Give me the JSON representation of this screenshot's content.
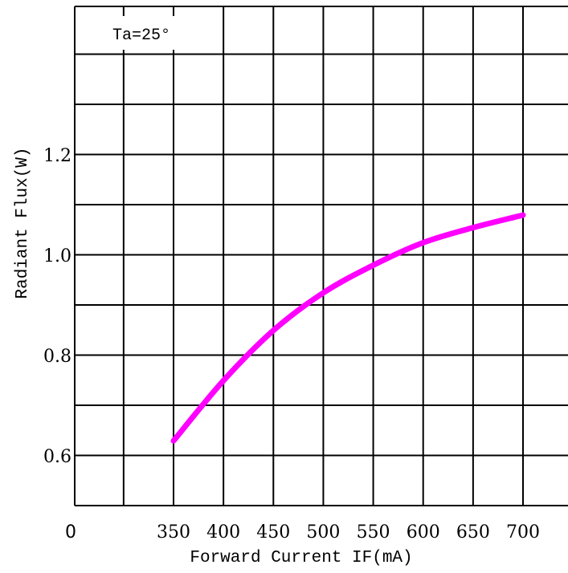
{
  "chart_data": {
    "type": "line",
    "annotation": "Ta=25°",
    "origin_label": "0",
    "xlabel": "Forward Current IF(mA)",
    "ylabel": "Radiant Flux(W)",
    "x_ticks": [
      "350",
      "400",
      "450",
      "500",
      "550",
      "600",
      "650",
      "700"
    ],
    "y_ticks": [
      "0.6",
      "0.8",
      "1.0",
      "1.2"
    ],
    "xlim": [
      250,
      700
    ],
    "ylim": [
      0.5,
      1.5
    ],
    "grid": true,
    "series": [
      {
        "color": "#ff00ff",
        "x": [
          350,
          400,
          450,
          500,
          550,
          600,
          650,
          700
        ],
        "y": [
          0.63,
          0.75,
          0.85,
          0.925,
          0.98,
          1.025,
          1.055,
          1.08
        ]
      }
    ]
  }
}
